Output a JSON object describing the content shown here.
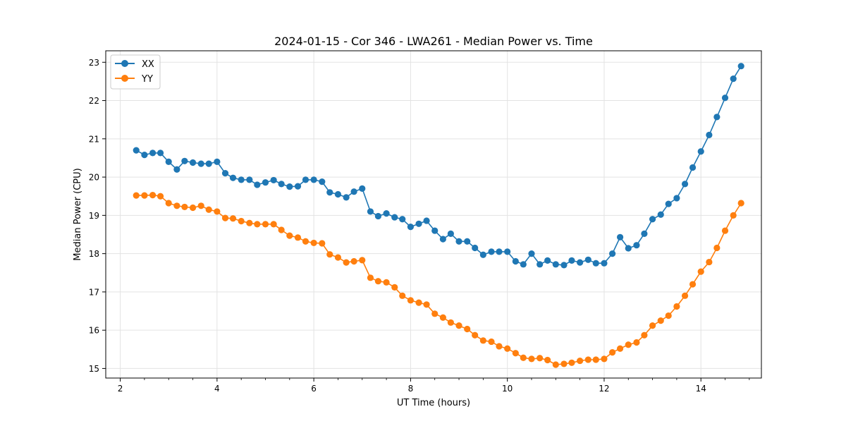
{
  "chart_data": {
    "type": "line",
    "title": "2024-01-15 - Cor 346 - LWA261 - Median Power vs. Time",
    "xlabel": "UT Time (hours)",
    "ylabel": "Median Power (CPU)",
    "xlim": [
      1.7,
      15.25
    ],
    "ylim": [
      14.75,
      23.3
    ],
    "x_ticks": [
      2,
      4,
      6,
      8,
      10,
      12,
      14
    ],
    "y_ticks": [
      15,
      16,
      17,
      18,
      19,
      20,
      21,
      22,
      23
    ],
    "grid": true,
    "legend_position": "top-left",
    "x": [
      2.33,
      2.5,
      2.67,
      2.83,
      3.0,
      3.17,
      3.33,
      3.5,
      3.67,
      3.83,
      4.0,
      4.17,
      4.33,
      4.5,
      4.67,
      4.83,
      5.0,
      5.17,
      5.33,
      5.5,
      5.67,
      5.83,
      6.0,
      6.17,
      6.33,
      6.5,
      6.67,
      6.83,
      7.0,
      7.17,
      7.33,
      7.5,
      7.67,
      7.83,
      8.0,
      8.17,
      8.33,
      8.5,
      8.67,
      8.83,
      9.0,
      9.17,
      9.33,
      9.5,
      9.67,
      9.83,
      10.0,
      10.17,
      10.33,
      10.5,
      10.67,
      10.83,
      11.0,
      11.17,
      11.33,
      11.5,
      11.67,
      11.83,
      12.0,
      12.17,
      12.33,
      12.5,
      12.67,
      12.83,
      13.0,
      13.17,
      13.33,
      13.5,
      13.67,
      13.83,
      14.0,
      14.17,
      14.33,
      14.5,
      14.67,
      14.83
    ],
    "series": [
      {
        "name": "XX",
        "color": "#1f77b4",
        "values": [
          20.7,
          20.58,
          20.63,
          20.63,
          20.4,
          20.2,
          20.42,
          20.38,
          20.35,
          20.35,
          20.4,
          20.1,
          19.98,
          19.93,
          19.93,
          19.8,
          19.86,
          19.92,
          19.82,
          19.75,
          19.76,
          19.93,
          19.93,
          19.88,
          19.6,
          19.55,
          19.47,
          19.62,
          19.7,
          19.1,
          18.98,
          19.05,
          18.95,
          18.9,
          18.7,
          18.78,
          18.86,
          18.6,
          18.38,
          18.52,
          18.32,
          18.32,
          18.15,
          17.97,
          18.05,
          18.05,
          18.05,
          17.8,
          17.72,
          18.0,
          17.72,
          17.82,
          17.72,
          17.7,
          17.82,
          17.77,
          17.84,
          17.75,
          17.75,
          18.0,
          18.43,
          18.14,
          18.22,
          18.52,
          18.9,
          19.02,
          19.3,
          19.45,
          19.82,
          20.25,
          20.67,
          21.1,
          21.57,
          22.07,
          22.57,
          22.9
        ]
      },
      {
        "name": "YY",
        "color": "#ff7f0e",
        "values": [
          19.52,
          19.52,
          19.53,
          19.5,
          19.32,
          19.25,
          19.22,
          19.2,
          19.25,
          19.15,
          19.1,
          18.93,
          18.92,
          18.85,
          18.8,
          18.77,
          18.77,
          18.77,
          18.62,
          18.47,
          18.42,
          18.32,
          18.28,
          18.27,
          17.98,
          17.9,
          17.77,
          17.8,
          17.83,
          17.37,
          17.28,
          17.25,
          17.12,
          16.9,
          16.78,
          16.72,
          16.67,
          16.43,
          16.33,
          16.2,
          16.12,
          16.03,
          15.87,
          15.73,
          15.7,
          15.58,
          15.52,
          15.4,
          15.28,
          15.25,
          15.27,
          15.22,
          15.1,
          15.12,
          15.15,
          15.2,
          15.23,
          15.23,
          15.25,
          15.42,
          15.52,
          15.62,
          15.68,
          15.87,
          16.12,
          16.25,
          16.38,
          16.62,
          16.9,
          17.2,
          17.53,
          17.78,
          18.15,
          18.6,
          19.0,
          19.32
        ]
      }
    ]
  }
}
